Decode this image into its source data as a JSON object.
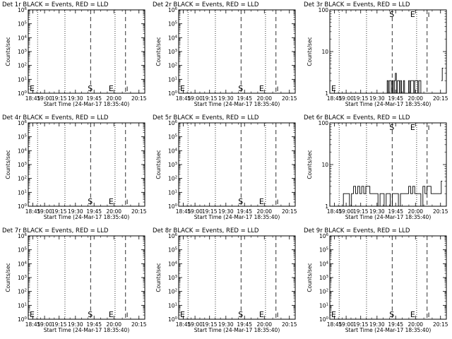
{
  "figure": {
    "background": "#ffffff",
    "ink": "#000000"
  },
  "chart_data": [
    {
      "type": "line",
      "title": "Det 1r BLACK = Events, RED = LLD",
      "xlabel": "Start Time (24-Mar-17 18:35:40)",
      "ylabel": "Counts/sec",
      "x_ticks": [
        "18:45",
        "19:00",
        "19:15",
        "19:30",
        "19:45",
        "20:00",
        "20:15"
      ],
      "yscale": "log",
      "ylim": [
        1,
        1000000
      ],
      "y_ticks": [
        "10^0",
        "10^1",
        "10^2",
        "10^3",
        "10^4",
        "10^5",
        "10^6"
      ],
      "markers": {
        "E_left": "E",
        "S": "S",
        "E_right": "E",
        "I": "I"
      },
      "series": []
    },
    {
      "type": "line",
      "title": "Det 2r BLACK = Events, RED = LLD",
      "xlabel": "Start Time (24-Mar-17 18:35:40)",
      "ylabel": "Counts/sec",
      "x_ticks": [
        "18:45",
        "19:00",
        "19:15",
        "19:30",
        "19:45",
        "20:00",
        "20:15"
      ],
      "yscale": "log",
      "ylim": [
        1,
        1000000
      ],
      "y_ticks": [
        "10^0",
        "10^1",
        "10^2",
        "10^3",
        "10^4",
        "10^5",
        "10^6"
      ],
      "markers": {
        "E_left": "E",
        "S": "S",
        "E_right": "E",
        "I": "I"
      },
      "series": []
    },
    {
      "type": "line",
      "title": "Det 3r BLACK = Events, RED = LLD",
      "xlabel": "Start Time (24-Mar-17 18:35:40)",
      "ylabel": "Counts/sec",
      "x_ticks": [
        "18:45",
        "19:00",
        "19:15",
        "19:30",
        "19:45",
        "20:00",
        "20:15"
      ],
      "yscale": "log",
      "ylim": [
        1,
        100
      ],
      "y_ticks": [
        "1",
        "10",
        "100"
      ],
      "markers": {
        "E_left": "E",
        "S": "S",
        "E_right": "E",
        "I": "I"
      },
      "series": [
        {
          "color": "#000000",
          "x_min": [
            60,
            61,
            62,
            63,
            64,
            65,
            66,
            67,
            68,
            69,
            70,
            71,
            72,
            73,
            74,
            75,
            76,
            77,
            78,
            79,
            80,
            81,
            82,
            83,
            84,
            85,
            86,
            87,
            88,
            89,
            90,
            91,
            92,
            93,
            94,
            95
          ],
          "values": [
            1,
            2,
            1,
            2,
            2,
            1,
            2,
            1,
            2,
            3,
            1,
            2,
            2,
            1,
            2,
            1,
            1,
            2,
            1,
            1,
            1,
            1,
            2,
            1,
            2,
            2,
            2,
            1,
            2,
            2,
            2,
            1,
            2,
            2,
            1,
            1
          ]
        },
        {
          "color": "#000000",
          "x_min": [
            114,
            115
          ],
          "values": [
            2,
            4
          ]
        }
      ]
    },
    {
      "type": "line",
      "title": "Det 4r BLACK = Events, RED = LLD",
      "xlabel": "Start Time (24-Mar-17 18:35:40)",
      "ylabel": "Counts/sec",
      "x_ticks": [
        "18:45",
        "19:00",
        "19:15",
        "19:30",
        "19:45",
        "20:00",
        "20:15"
      ],
      "yscale": "log",
      "ylim": [
        1,
        1000000
      ],
      "y_ticks": [
        "10^0",
        "10^1",
        "10^2",
        "10^3",
        "10^4",
        "10^5",
        "10^6"
      ],
      "markers": {
        "E_left": "",
        "S": "S",
        "E_right": "E",
        "I": "I"
      },
      "series": []
    },
    {
      "type": "line",
      "title": "Det 5r BLACK = Events, RED = LLD",
      "xlabel": "Start Time (24-Mar-17 18:35:40)",
      "ylabel": "Counts/sec",
      "x_ticks": [
        "18:45",
        "19:00",
        "19:15",
        "19:30",
        "19:45",
        "20:00",
        "20:15"
      ],
      "yscale": "log",
      "ylim": [
        1,
        1000000
      ],
      "y_ticks": [
        "10^0",
        "10^1",
        "10^2",
        "10^3",
        "10^4",
        "10^5",
        "10^6"
      ],
      "markers": {
        "E_left": "",
        "S": "S",
        "E_right": "E",
        "I": "I"
      },
      "series": []
    },
    {
      "type": "line",
      "title": "Det 6r BLACK = Events, RED = LLD",
      "xlabel": "Start Time (24-Mar-17 18:35:40)",
      "ylabel": "Counts/sec",
      "x_ticks": [
        "18:45",
        "19:00",
        "19:15",
        "19:30",
        "19:45",
        "20:00",
        "20:15"
      ],
      "yscale": "log",
      "ylim": [
        1,
        100
      ],
      "y_ticks": [
        "1",
        "10",
        "100"
      ],
      "markers": {
        "E_left": "",
        "S": "S",
        "E_right": "E",
        "I": "I"
      },
      "series": [
        {
          "color": "#000000",
          "x_min": [
            16,
            18,
            20,
            22,
            24,
            26,
            28,
            30,
            32,
            34,
            36,
            38,
            40,
            42,
            44,
            46,
            48,
            50,
            52,
            54,
            56,
            58,
            60,
            62,
            64,
            66,
            68,
            70,
            72,
            74,
            76,
            78,
            80,
            82,
            84,
            86,
            88,
            90,
            92,
            94,
            96,
            98,
            100,
            102,
            104,
            106,
            108,
            110,
            112,
            114
          ],
          "values": [
            1,
            2,
            2,
            2,
            1,
            2,
            3,
            2,
            3,
            2,
            3,
            2,
            3,
            3,
            2,
            2,
            2,
            2,
            1,
            2,
            2,
            1,
            2,
            2,
            1,
            2,
            2,
            2,
            1,
            2,
            2,
            2,
            2,
            3,
            2,
            3,
            2,
            2,
            2,
            1,
            3,
            2,
            3,
            3,
            2,
            2,
            2,
            2,
            2,
            4
          ]
        }
      ]
    },
    {
      "type": "line",
      "title": "Det 7r BLACK = Events, RED = LLD",
      "xlabel": "Start Time (24-Mar-17 18:35:40)",
      "ylabel": "Counts/sec",
      "x_ticks": [
        "18:45",
        "19:00",
        "19:15",
        "19:30",
        "19:45",
        "20:00",
        "20:15"
      ],
      "yscale": "log",
      "ylim": [
        1,
        1000000
      ],
      "y_ticks": [
        "10^0",
        "10^1",
        "10^2",
        "10^3",
        "10^4",
        "10^5",
        "10^6"
      ],
      "markers": {
        "E_left": "E",
        "S": "S",
        "E_right": "E",
        "I": "I"
      },
      "series": []
    },
    {
      "type": "line",
      "title": "Det 8r BLACK = Events, RED = LLD",
      "xlabel": "Start Time (24-Mar-17 18:35:40)",
      "ylabel": "Counts/sec",
      "x_ticks": [
        "18:45",
        "19:00",
        "19:15",
        "19:30",
        "19:45",
        "20:00",
        "20:15"
      ],
      "yscale": "log",
      "ylim": [
        1,
        1000000
      ],
      "y_ticks": [
        "10^0",
        "10^1",
        "10^2",
        "10^3",
        "10^4",
        "10^5",
        "10^6"
      ],
      "markers": {
        "E_left": "E",
        "S": "S",
        "E_right": "E",
        "I": "I"
      },
      "series": []
    },
    {
      "type": "line",
      "title": "Det 9r BLACK = Events, RED = LLD",
      "xlabel": "Start Time (24-Mar-17 18:35:40)",
      "ylabel": "Counts/sec",
      "x_ticks": [
        "18:45",
        "19:00",
        "19:15",
        "19:30",
        "19:45",
        "20:00",
        "20:15"
      ],
      "yscale": "log",
      "ylim": [
        1,
        1000000
      ],
      "y_ticks": [
        "10^0",
        "10^1",
        "10^2",
        "10^3",
        "10^4",
        "10^5",
        "10^6"
      ],
      "markers": {
        "E_left": "E",
        "S": "S",
        "E_right": "E",
        "I": "I"
      },
      "series": []
    }
  ]
}
